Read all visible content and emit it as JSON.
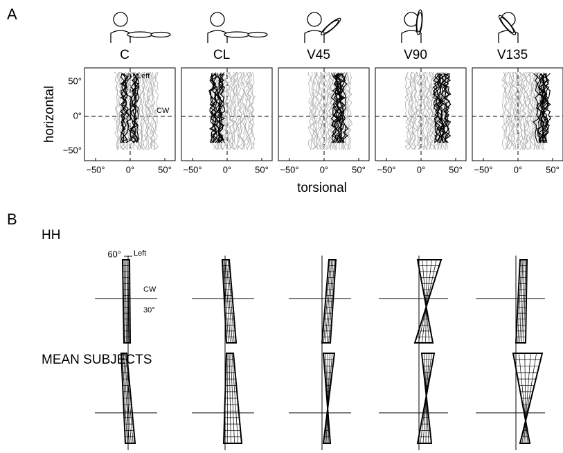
{
  "panel_a": {
    "label": "A",
    "conditions": [
      "C",
      "CL",
      "V45",
      "V90",
      "V135"
    ],
    "y_axis_label": "horizontal",
    "x_axis_label": "torsional",
    "yticks": [
      "50°",
      "0°",
      "−50°"
    ],
    "xticks": [
      "−50°",
      "0°",
      "50°"
    ],
    "annotations": {
      "left": "Left",
      "cw": "CW"
    }
  },
  "panel_b": {
    "label": "B",
    "rows": [
      "HH",
      "MEAN SUBJECTS"
    ],
    "annotations": {
      "top": "60°",
      "left": "Left",
      "cw": "CW",
      "right": "30°"
    }
  }
}
